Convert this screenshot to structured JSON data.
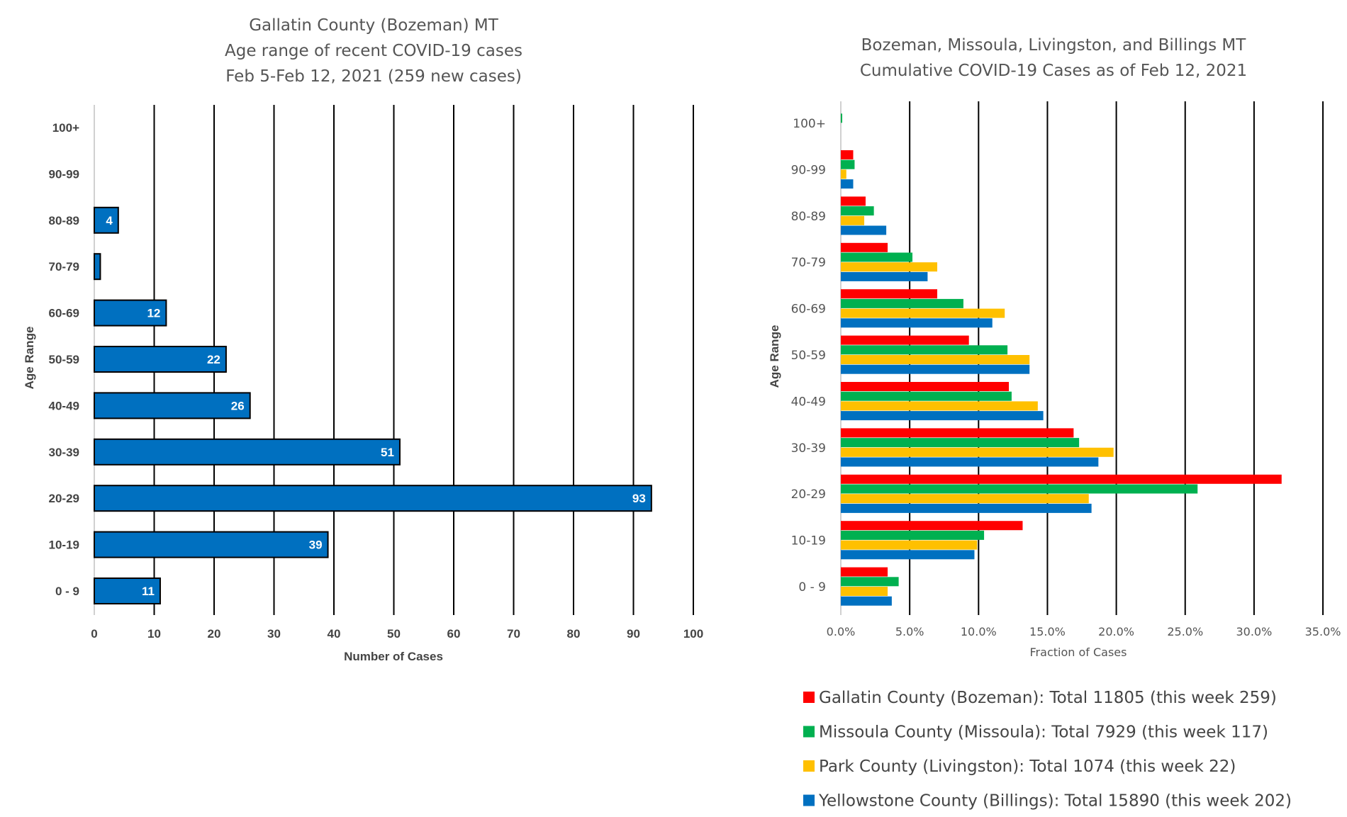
{
  "chart_data": [
    {
      "type": "bar",
      "orientation": "horizontal",
      "title": [
        "Gallatin County (Bozeman) MT",
        "Age range of recent COVID-19 cases",
        "Feb 5-Feb 12, 2021 (259 new cases)"
      ],
      "xlabel": "Number of Cases",
      "ylabel": "Age Range",
      "categories": [
        "0 - 9",
        "10-19",
        "20-29",
        "30-39",
        "40-49",
        "50-59",
        "60-69",
        "70-79",
        "80-89",
        "90-99",
        "100+"
      ],
      "values": [
        11,
        39,
        93,
        51,
        26,
        22,
        12,
        1,
        4,
        0,
        0
      ],
      "data_labels": [
        "11",
        "39",
        "93",
        "51",
        "26",
        "22",
        "12",
        "",
        "4",
        "",
        ""
      ],
      "xlim": [
        0,
        100
      ],
      "xticks": [
        "0",
        "10",
        "20",
        "30",
        "40",
        "50",
        "60",
        "70",
        "80",
        "90",
        "100"
      ],
      "grid": "vertical",
      "color": "#0070C0"
    },
    {
      "type": "bar",
      "orientation": "horizontal",
      "title": [
        "Bozeman, Missoula, Livingston, and Billings MT",
        "Cumulative COVID-19 Cases as of Feb 12, 2021"
      ],
      "xlabel": "Fraction of Cases",
      "ylabel": "Age Range",
      "categories": [
        "0 - 9",
        "10-19",
        "20-29",
        "30-39",
        "40-49",
        "50-59",
        "60-69",
        "70-79",
        "80-89",
        "90-99",
        "100+"
      ],
      "xlim": [
        0,
        35
      ],
      "xticks": [
        "0.0%",
        "5.0%",
        "10.0%",
        "15.0%",
        "20.0%",
        "25.0%",
        "30.0%",
        "35.0%"
      ],
      "grid": "vertical",
      "legend_position": "bottom",
      "series": [
        {
          "name": "Gallatin County (Bozeman): Total 11805 (this week 259)",
          "color": "#FF0000",
          "values": [
            3.4,
            13.2,
            32.0,
            16.9,
            12.2,
            9.3,
            7.0,
            3.4,
            1.8,
            0.9,
            0.0
          ]
        },
        {
          "name": "Missoula County (Missoula): Total 7929 (this week 117)",
          "color": "#00B050",
          "values": [
            4.2,
            10.4,
            25.9,
            17.3,
            12.4,
            12.1,
            8.9,
            5.2,
            2.4,
            1.0,
            0.1
          ]
        },
        {
          "name": "Park County (Livingston): Total 1074 (this week 22)",
          "color": "#FFC000",
          "values": [
            3.4,
            9.9,
            18.0,
            19.8,
            14.3,
            13.7,
            11.9,
            7.0,
            1.7,
            0.4,
            0.0
          ]
        },
        {
          "name": "Yellowstone County (Billings): Total 15890 (this week 202)",
          "color": "#0070C0",
          "values": [
            3.7,
            9.7,
            18.2,
            18.7,
            14.7,
            13.7,
            11.0,
            6.3,
            3.3,
            0.9,
            0.0
          ]
        }
      ]
    }
  ]
}
